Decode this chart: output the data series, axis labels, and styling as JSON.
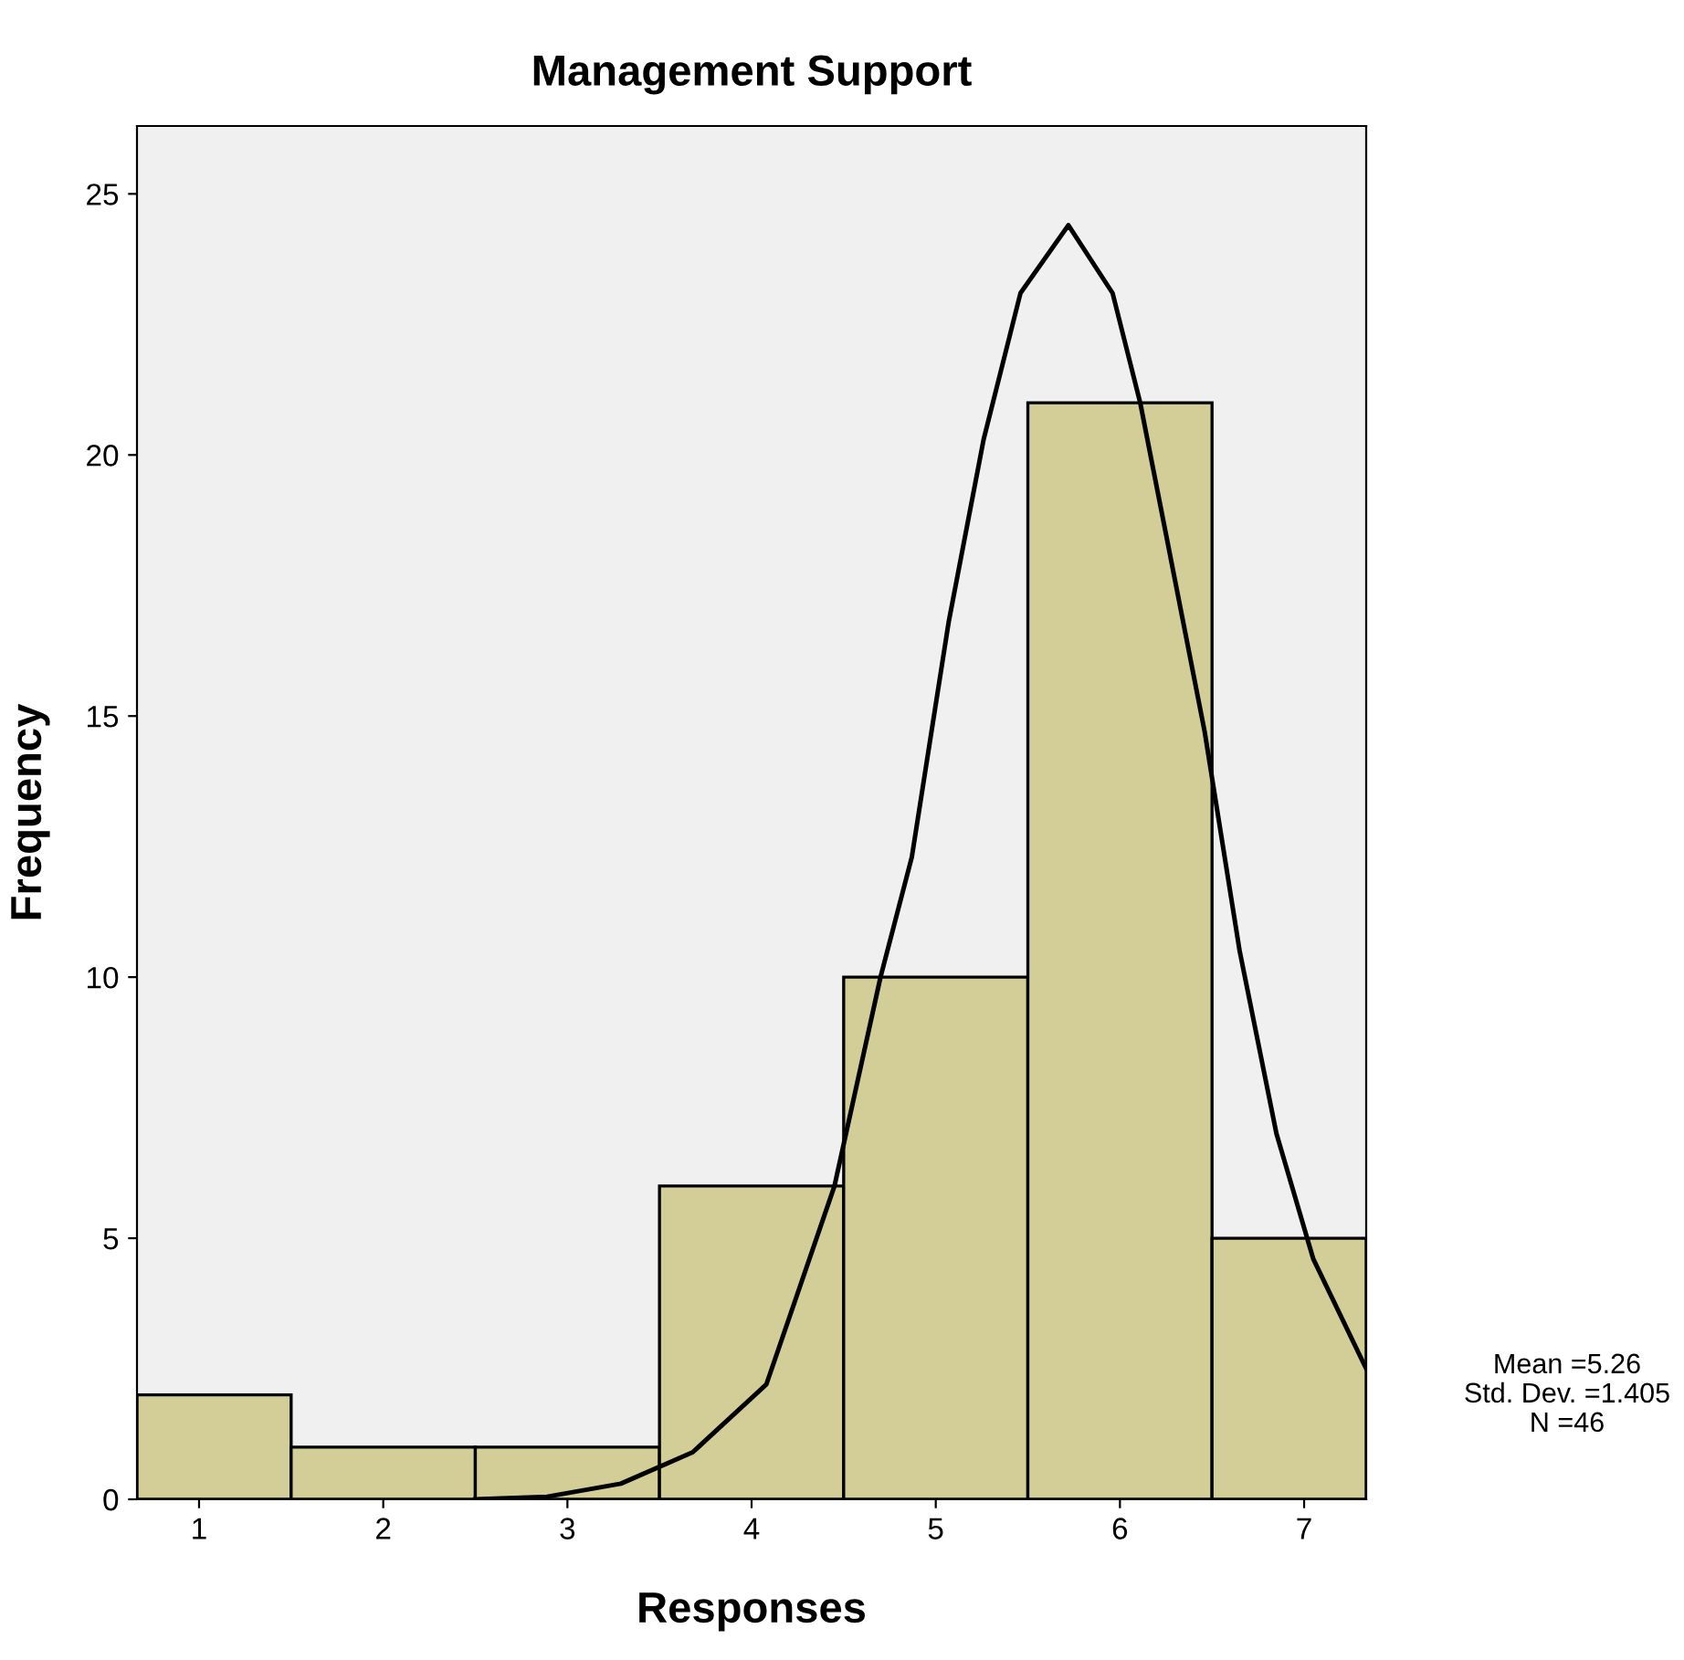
{
  "chart_data": {
    "type": "histogram",
    "title": "Management Support",
    "xlabel": "Responses",
    "ylabel": "Frequency",
    "bins": [
      0.663,
      1.5,
      2.5,
      3.5,
      4.5,
      5.5,
      6.5,
      7.337
    ],
    "values": [
      2,
      1,
      1,
      6,
      10,
      21,
      5
    ],
    "color": "#d3ce98",
    "series": [
      {
        "type": "line",
        "color": "#000000",
        "x": [
          2.5,
          2.89,
          3.29,
          3.68,
          4.08,
          4.45,
          4.7,
          4.87,
          5.07,
          5.26,
          5.46,
          5.72,
          5.96,
          6.11,
          6.46,
          6.65,
          6.85,
          7.05,
          7.337
        ],
        "values": [
          0.0,
          0.05,
          0.3,
          0.9,
          2.2,
          6,
          10,
          12.3,
          16.8,
          20.3,
          23.1,
          24.4,
          23.1,
          21,
          14.7,
          10.5,
          7.0,
          4.6,
          2.5
        ]
      }
    ],
    "xlim": [
      0.663,
      7.337
    ],
    "xticks": [
      1,
      2,
      3,
      4,
      5,
      6,
      7
    ],
    "ylim": [
      0,
      26.3
    ],
    "yticks": [
      0,
      5,
      10,
      15,
      20,
      25
    ],
    "annotations": [
      "Mean =5.26",
      "Std. Dev. =1.405",
      "N =46"
    ]
  }
}
